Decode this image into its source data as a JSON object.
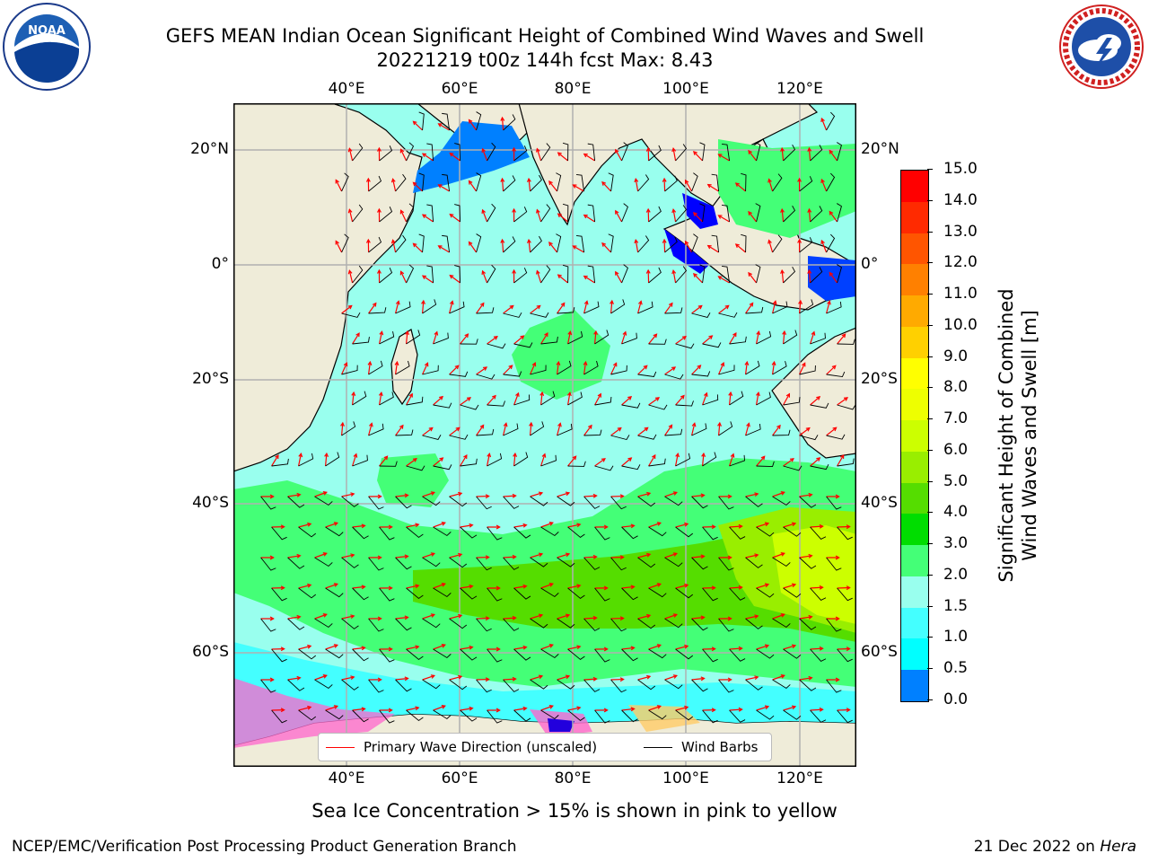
{
  "header": {
    "title_line1": "GEFS MEAN Indian Ocean Significant Height of Combined Wind Waves and Swell",
    "title_line2": "20221219 t00z 144h fcst   Max: 8.43"
  },
  "logos": {
    "noaa_text": "NOAA",
    "nws_text": "NATIONAL WEATHER SERVICE"
  },
  "map": {
    "lon_ticks": [
      "40°E",
      "60°E",
      "80°E",
      "100°E",
      "120°E"
    ],
    "lat_ticks": [
      "20°N",
      "0°",
      "20°S",
      "40°S",
      "60°S"
    ],
    "land_color": "#efecd9",
    "ice_note": "Sea Ice Concentration > 15% is shown in pink to yellow"
  },
  "legend": {
    "wave_label": "Primary Wave Direction (unscaled)",
    "barb_label": "Wind Barbs",
    "wave_color": "#ff0000",
    "barb_color": "#000000"
  },
  "colorbar": {
    "label_line1": "Significant Height of Combined",
    "label_line2": "Wind Waves and Swell [m]",
    "ticks": [
      "15.0",
      "14.0",
      "13.0",
      "12.0",
      "11.0",
      "10.0",
      "9.0",
      "8.0",
      "7.0",
      "6.0",
      "5.0",
      "4.0",
      "3.0",
      "2.0",
      "1.5",
      "1.0",
      "0.5",
      "0.0"
    ],
    "colors": [
      "#ff0000",
      "#ff2a00",
      "#ff5500",
      "#ff8000",
      "#ffaa00",
      "#ffd000",
      "#ffff00",
      "#eeff00",
      "#ccff00",
      "#99ee00",
      "#55dd00",
      "#00dd00",
      "#44ff77",
      "#99ffee",
      "#44ffff",
      "#00ffff",
      "#0080ff",
      "#0000ff"
    ]
  },
  "footer": {
    "left": "NCEP/EMC/Verification Post Processing Product Generation Branch",
    "right_date": "21 Dec 2022 on ",
    "right_host": "Hera"
  }
}
